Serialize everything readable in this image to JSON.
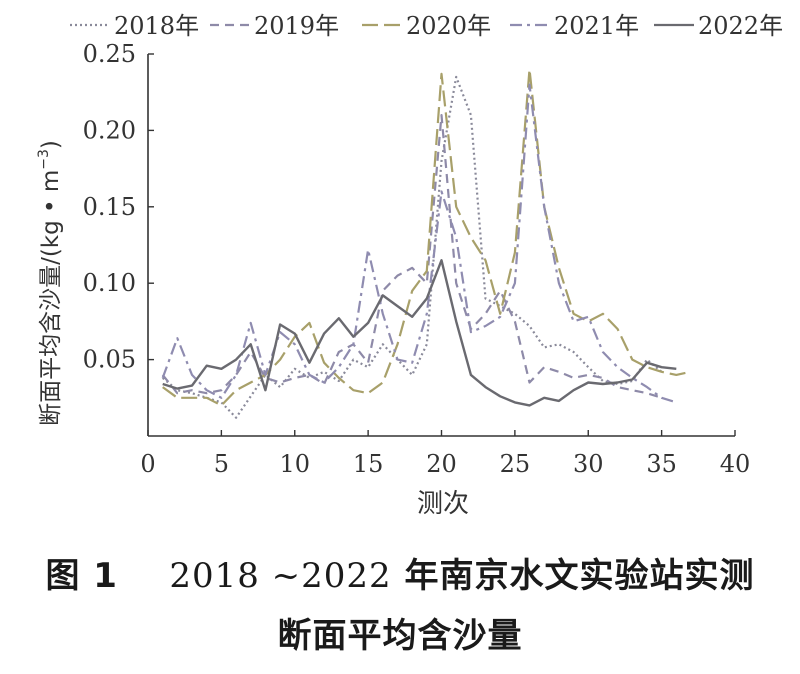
{
  "figure": {
    "caption_line1_prefix": "图 1",
    "caption_line1_range": "2018 ~2022",
    "caption_line1_text": "年南京水文实验站实测",
    "caption_line2": "断面平均含沙量"
  },
  "colors": {
    "2018": "#8a8a9a",
    "2019": "#8e8aa8",
    "2020": "#a8a06a",
    "2021": "#8f8cb0",
    "2022": "#6a6a70",
    "axis": "#333333"
  },
  "chart_data": {
    "type": "line",
    "title": "",
    "xlabel": "测次",
    "ylabel": "断面平均含沙量/(kg • m",
    "ylabel_superscript": "−3",
    "ylabel_close": ")",
    "xlim": [
      0,
      40
    ],
    "ylim": [
      0,
      0.25
    ],
    "x_ticks": [
      0,
      5,
      10,
      15,
      20,
      25,
      30,
      35,
      40
    ],
    "y_ticks": [
      0.05,
      0.1,
      0.15,
      0.2,
      0.25
    ],
    "x_tick_labels": [
      "0",
      "5",
      "10",
      "15",
      "20",
      "25",
      "30",
      "35",
      "40"
    ],
    "y_tick_labels": [
      "0.05",
      "0.10",
      "0.15",
      "0.20",
      "0.25"
    ],
    "grid": false,
    "legend_position": "top",
    "series": [
      {
        "name": "2018年",
        "style": "dotted",
        "color_key": "2018",
        "x": [
          1,
          2,
          3,
          4,
          5,
          6,
          7,
          8,
          9,
          10,
          11,
          12,
          13,
          14,
          15,
          16,
          17,
          18,
          19,
          20,
          21,
          22,
          23,
          24,
          25,
          26,
          27,
          28,
          29,
          30,
          31,
          32,
          33,
          34,
          35
        ],
        "values": [
          0.038,
          0.03,
          0.028,
          0.025,
          0.022,
          0.012,
          0.026,
          0.04,
          0.032,
          0.044,
          0.038,
          0.042,
          0.036,
          0.05,
          0.045,
          0.06,
          0.05,
          0.04,
          0.06,
          0.18,
          0.235,
          0.21,
          0.09,
          0.085,
          0.08,
          0.072,
          0.058,
          0.06,
          0.055,
          0.045,
          0.036,
          0.034,
          0.036,
          0.05,
          0.042
        ]
      },
      {
        "name": "2019年",
        "style": "dashed",
        "color_key": "2019",
        "x": [
          1,
          2,
          3,
          4,
          5,
          6,
          7,
          8,
          9,
          10,
          11,
          12,
          13,
          14,
          15,
          16,
          17,
          18,
          19,
          20,
          21,
          22,
          23,
          24,
          25,
          26,
          27,
          28,
          29,
          30,
          31,
          32,
          33,
          34,
          35
        ],
        "values": [
          0.04,
          0.028,
          0.03,
          0.028,
          0.03,
          0.04,
          0.055,
          0.038,
          0.035,
          0.038,
          0.04,
          0.034,
          0.055,
          0.06,
          0.048,
          0.095,
          0.105,
          0.11,
          0.1,
          0.21,
          0.1,
          0.07,
          0.08,
          0.095,
          0.075,
          0.035,
          0.045,
          0.042,
          0.038,
          0.04,
          0.038,
          0.032,
          0.03,
          0.028,
          0.025
        ]
      },
      {
        "name": "2020年",
        "style": "longdash",
        "color_key": "2020",
        "x": [
          1,
          2,
          3,
          4,
          5,
          6,
          7,
          8,
          9,
          10,
          11,
          12,
          13,
          14,
          15,
          16,
          17,
          18,
          19,
          20,
          21,
          22,
          23,
          24,
          25,
          26,
          27,
          28,
          29,
          30,
          31,
          32,
          33,
          34,
          35,
          36,
          37
        ],
        "values": [
          0.032,
          0.025,
          0.025,
          0.025,
          0.02,
          0.03,
          0.035,
          0.04,
          0.05,
          0.065,
          0.074,
          0.048,
          0.038,
          0.03,
          0.028,
          0.035,
          0.06,
          0.095,
          0.108,
          0.237,
          0.15,
          0.13,
          0.115,
          0.08,
          0.12,
          0.24,
          0.15,
          0.11,
          0.08,
          0.075,
          0.08,
          0.07,
          0.05,
          0.045,
          0.042,
          0.04,
          0.042
        ]
      },
      {
        "name": "2021年",
        "style": "dashdot",
        "color_key": "2021",
        "x": [
          1,
          2,
          3,
          4,
          5,
          6,
          7,
          8,
          9,
          10,
          11,
          12,
          13,
          14,
          15,
          16,
          17,
          18,
          19,
          20,
          21,
          22,
          23,
          24,
          25,
          26,
          27,
          28,
          29,
          30,
          31,
          32,
          33,
          34,
          35,
          36
        ],
        "values": [
          0.038,
          0.064,
          0.04,
          0.03,
          0.025,
          0.04,
          0.074,
          0.04,
          0.068,
          0.06,
          0.04,
          0.035,
          0.045,
          0.06,
          0.122,
          0.08,
          0.05,
          0.048,
          0.08,
          0.16,
          0.13,
          0.068,
          0.072,
          0.078,
          0.1,
          0.23,
          0.15,
          0.1,
          0.075,
          0.078,
          0.055,
          0.045,
          0.038,
          0.032,
          0.025,
          0.022
        ]
      },
      {
        "name": "2022年",
        "style": "solid",
        "color_key": "2022",
        "x": [
          1,
          2,
          3,
          4,
          5,
          6,
          7,
          8,
          9,
          10,
          11,
          12,
          13,
          14,
          15,
          16,
          17,
          18,
          19,
          20,
          21,
          22,
          23,
          24,
          25,
          26,
          27,
          28,
          29,
          30,
          31,
          32,
          33,
          34,
          35,
          36
        ],
        "values": [
          0.034,
          0.031,
          0.033,
          0.046,
          0.044,
          0.05,
          0.06,
          0.03,
          0.073,
          0.067,
          0.048,
          0.067,
          0.077,
          0.065,
          0.074,
          0.092,
          0.085,
          0.078,
          0.09,
          0.115,
          0.075,
          0.04,
          0.032,
          0.026,
          0.022,
          0.02,
          0.025,
          0.023,
          0.03,
          0.035,
          0.034,
          0.035,
          0.037,
          0.048,
          0.045,
          0.044
        ]
      }
    ]
  }
}
